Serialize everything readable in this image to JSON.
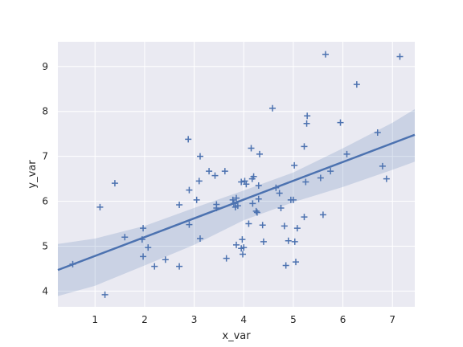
{
  "chart_data": {
    "type": "scatter",
    "xlabel": "x_var",
    "ylabel": "y_var",
    "xlim": [
      0.25,
      7.45
    ],
    "ylim": [
      3.65,
      9.55
    ],
    "xticks": [
      1,
      2,
      3,
      4,
      5,
      6,
      7
    ],
    "yticks": [
      4,
      5,
      6,
      7,
      8,
      9
    ],
    "grid": true,
    "marker": "plus",
    "colors": {
      "points": "#4c72b0",
      "line": "#4c72b0",
      "band": "#4c72b0",
      "plot_bg": "#eaeaf2",
      "grid": "#ffffff"
    },
    "points": [
      [
        0.55,
        4.6
      ],
      [
        1.1,
        5.87
      ],
      [
        1.2,
        3.92
      ],
      [
        1.4,
        6.4
      ],
      [
        1.6,
        5.2
      ],
      [
        1.95,
        5.15
      ],
      [
        1.97,
        5.4
      ],
      [
        1.97,
        4.77
      ],
      [
        2.07,
        4.97
      ],
      [
        2.2,
        4.55
      ],
      [
        2.42,
        4.7
      ],
      [
        2.7,
        5.92
      ],
      [
        2.7,
        4.55
      ],
      [
        2.88,
        7.38
      ],
      [
        2.9,
        6.25
      ],
      [
        2.9,
        5.48
      ],
      [
        3.05,
        6.03
      ],
      [
        3.1,
        6.45
      ],
      [
        3.12,
        7.0
      ],
      [
        3.12,
        5.17
      ],
      [
        3.3,
        6.67
      ],
      [
        3.42,
        6.57
      ],
      [
        3.45,
        5.93
      ],
      [
        3.45,
        5.85
      ],
      [
        3.62,
        6.67
      ],
      [
        3.65,
        4.73
      ],
      [
        3.78,
        6.03
      ],
      [
        3.8,
        5.95
      ],
      [
        3.83,
        5.87
      ],
      [
        3.85,
        6.07
      ],
      [
        3.85,
        5.03
      ],
      [
        3.88,
        5.9
      ],
      [
        3.95,
        6.43
      ],
      [
        3.95,
        4.95
      ],
      [
        3.97,
        5.15
      ],
      [
        3.98,
        4.82
      ],
      [
        4.0,
        4.97
      ],
      [
        4.02,
        6.45
      ],
      [
        4.05,
        6.38
      ],
      [
        4.1,
        5.5
      ],
      [
        4.15,
        7.18
      ],
      [
        4.17,
        6.5
      ],
      [
        4.18,
        5.95
      ],
      [
        4.2,
        6.55
      ],
      [
        4.25,
        5.78
      ],
      [
        4.27,
        5.75
      ],
      [
        4.3,
        6.35
      ],
      [
        4.3,
        6.05
      ],
      [
        4.32,
        7.05
      ],
      [
        4.38,
        5.47
      ],
      [
        4.4,
        5.1
      ],
      [
        4.58,
        8.07
      ],
      [
        4.65,
        6.3
      ],
      [
        4.72,
        6.18
      ],
      [
        4.75,
        5.85
      ],
      [
        4.82,
        5.45
      ],
      [
        4.85,
        4.57
      ],
      [
        4.9,
        5.12
      ],
      [
        4.95,
        6.03
      ],
      [
        5.0,
        6.03
      ],
      [
        5.02,
        6.8
      ],
      [
        5.03,
        5.1
      ],
      [
        5.05,
        4.65
      ],
      [
        5.08,
        5.4
      ],
      [
        5.22,
        7.22
      ],
      [
        5.22,
        5.65
      ],
      [
        5.25,
        6.43
      ],
      [
        5.27,
        7.73
      ],
      [
        5.28,
        7.9
      ],
      [
        5.55,
        6.52
      ],
      [
        5.6,
        5.7
      ],
      [
        5.65,
        9.27
      ],
      [
        5.75,
        6.67
      ],
      [
        5.95,
        7.75
      ],
      [
        6.08,
        7.05
      ],
      [
        6.28,
        8.6
      ],
      [
        6.7,
        7.53
      ],
      [
        6.8,
        6.78
      ],
      [
        6.88,
        6.5
      ],
      [
        7.15,
        9.22
      ]
    ],
    "regression": {
      "x": [
        0.25,
        7.45
      ],
      "y": [
        4.47,
        7.48
      ]
    },
    "confidence_band": {
      "x": [
        0.25,
        1.0,
        2.0,
        3.0,
        4.0,
        5.0,
        6.0,
        7.0,
        7.45
      ],
      "upper": [
        5.05,
        5.17,
        5.45,
        5.85,
        6.24,
        6.64,
        7.18,
        7.75,
        8.05
      ],
      "lower": [
        3.89,
        4.12,
        4.57,
        5.03,
        5.58,
        5.98,
        6.32,
        6.7,
        6.88
      ]
    }
  }
}
